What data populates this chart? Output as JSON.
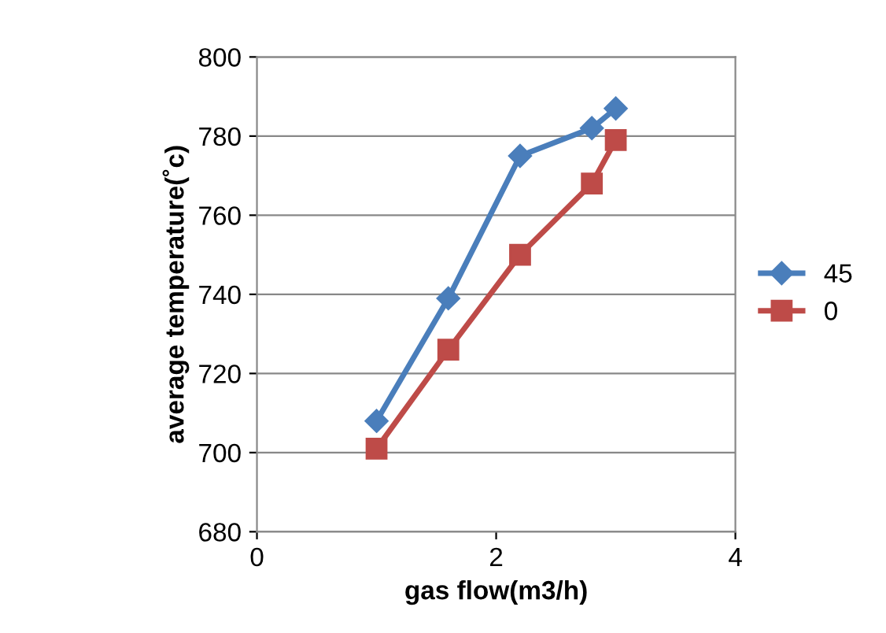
{
  "chart_data": {
    "type": "line",
    "xlabel": "gas flow(m3/h)",
    "ylabel": "average temperature(˚c)",
    "xlim": [
      0,
      4
    ],
    "xticks": [
      0,
      2,
      4
    ],
    "ylim": [
      680,
      800
    ],
    "yticks": [
      680,
      700,
      720,
      740,
      760,
      780,
      800
    ],
    "grid": "y",
    "legend": "right",
    "line_style": "solid",
    "series": [
      {
        "name": "45",
        "color": "#4a7ebb",
        "marker": "diamond",
        "x": [
          1.0,
          1.6,
          2.2,
          2.8,
          3.0
        ],
        "values": [
          708,
          739,
          775,
          782,
          787
        ]
      },
      {
        "name": "0",
        "color": "#be4b48",
        "marker": "square",
        "x": [
          1.0,
          1.6,
          2.2,
          2.8,
          3.0
        ],
        "values": [
          701,
          726,
          750,
          768,
          779
        ]
      }
    ]
  }
}
